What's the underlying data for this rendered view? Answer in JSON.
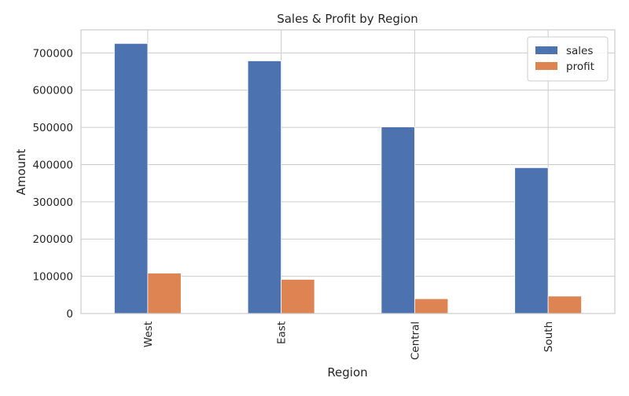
{
  "chart_data": {
    "type": "bar",
    "title": "Sales & Profit by Region",
    "xlabel": "Region",
    "ylabel": "Amount",
    "categories": [
      "West",
      "East",
      "Central",
      "South"
    ],
    "series": [
      {
        "name": "sales",
        "values": [
          725458,
          678781,
          501240,
          391722
        ],
        "color": "#4c72b0"
      },
      {
        "name": "profit",
        "values": [
          108418,
          91523,
          39706,
          46749
        ],
        "color": "#dd8452"
      }
    ],
    "ylim": [
      0,
      762000
    ],
    "yticks": [
      0,
      100000,
      200000,
      300000,
      400000,
      500000,
      600000,
      700000
    ],
    "ytick_labels": [
      "0",
      "100000",
      "200000",
      "300000",
      "400000",
      "500000",
      "600000",
      "700000"
    ],
    "grid": true,
    "legend_position": "top-right",
    "x_tick_rotation": "vertical"
  }
}
